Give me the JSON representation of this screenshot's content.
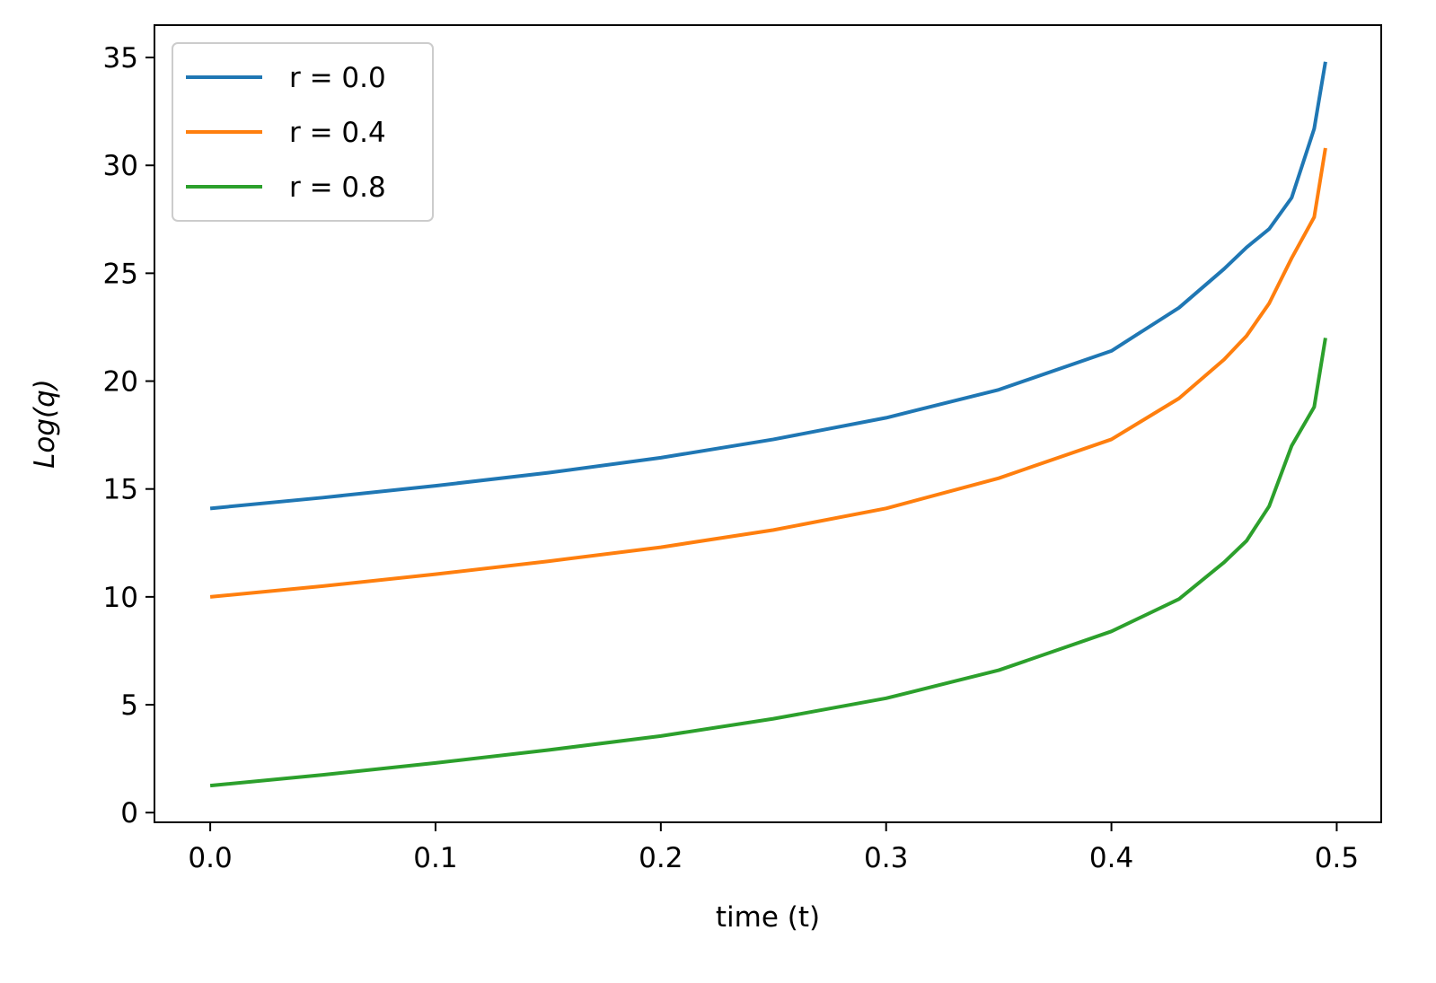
{
  "chart_data": {
    "type": "line",
    "x_label": "time (t)",
    "y_label": "Log(q)",
    "x": [
      0,
      0.05,
      0.1,
      0.15,
      0.2,
      0.25,
      0.3,
      0.35,
      0.4,
      0.43,
      0.45,
      0.46,
      0.47,
      0.48,
      0.49,
      0.495
    ],
    "series": [
      {
        "name": "r = 0.0",
        "color": "#1f77b4",
        "values": [
          14.1,
          14.6,
          15.15,
          15.75,
          16.45,
          17.3,
          18.3,
          19.6,
          21.4,
          23.4,
          25.2,
          26.2,
          27.05,
          28.5,
          31.7,
          34.8
        ]
      },
      {
        "name": "r = 0.4",
        "color": "#ff7f0e",
        "values": [
          10.0,
          10.5,
          11.05,
          11.65,
          12.3,
          13.1,
          14.1,
          15.5,
          17.3,
          19.2,
          21.0,
          22.1,
          23.6,
          25.7,
          27.6,
          30.8
        ]
      },
      {
        "name": "r = 0.8",
        "color": "#2ca02c",
        "values": [
          1.25,
          1.75,
          2.3,
          2.9,
          3.55,
          4.35,
          5.3,
          6.6,
          8.4,
          9.9,
          11.6,
          12.6,
          14.2,
          17.0,
          18.8,
          22.0
        ]
      }
    ],
    "xlim": [
      -0.02475,
      0.51975
    ],
    "xticks": [
      {
        "value": 0,
        "label": "0.0"
      },
      0.1,
      0.2,
      0.3,
      0.4,
      0.5
    ],
    "ylim": [
      -0.45,
      36.5
    ],
    "yticks": [
      0,
      5,
      10,
      15,
      20,
      25,
      30,
      35
    ],
    "legend": "upper left",
    "grid": false
  }
}
